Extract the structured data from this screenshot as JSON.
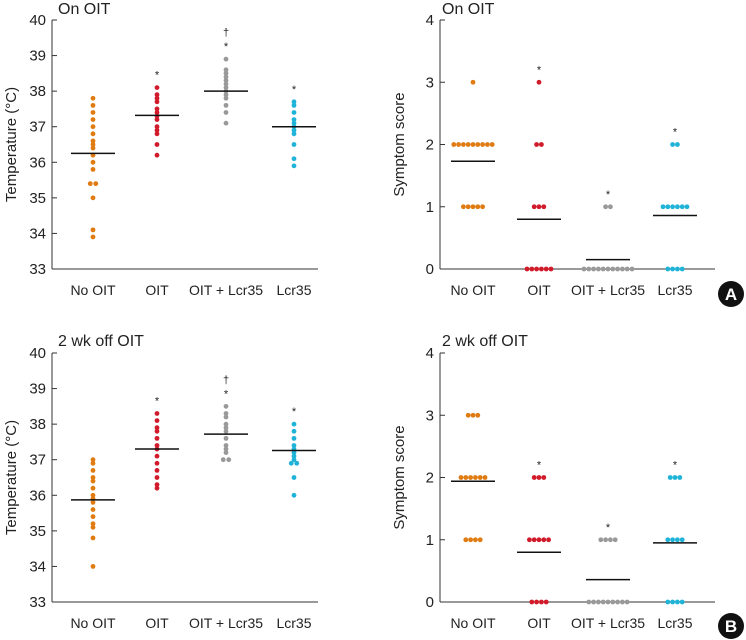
{
  "colors": {
    "No OIT": "#e07b12",
    "OIT": "#d11a2a",
    "OIT + Lcr35": "#999999",
    "Lcr35": "#1fb3d8"
  },
  "labels": {
    "A": "A",
    "B": "B"
  },
  "chart_data": [
    {
      "type": "scatter",
      "title": "On OIT",
      "ylabel": "Temperature (°C)",
      "ylim": [
        33,
        40
      ],
      "yticks": [
        33,
        34,
        35,
        36,
        37,
        38,
        39,
        40
      ],
      "categories": [
        "No OIT",
        "OIT",
        "OIT + Lcr35",
        "Lcr35"
      ],
      "series": [
        {
          "name": "No OIT",
          "values": [
            37.8,
            37.6,
            37.4,
            37.2,
            37.0,
            36.8,
            36.6,
            36.5,
            36.4,
            36.2,
            36.0,
            35.8,
            35.4,
            35.4,
            35.0,
            34.1,
            33.9
          ],
          "mean": 36.25,
          "annotation": ""
        },
        {
          "name": "OIT",
          "values": [
            38.1,
            37.9,
            37.8,
            37.7,
            37.5,
            37.4,
            37.3,
            37.2,
            37.0,
            36.9,
            36.8,
            36.5,
            36.2
          ],
          "mean": 37.32,
          "annotation": "*"
        },
        {
          "name": "OIT + Lcr35",
          "values": [
            38.9,
            38.6,
            38.5,
            38.4,
            38.3,
            38.2,
            38.1,
            38.0,
            37.9,
            37.8,
            37.6,
            37.4,
            37.1
          ],
          "mean": 38.0,
          "annotation": "†*"
        },
        {
          "name": "Lcr35",
          "values": [
            37.7,
            37.6,
            37.4,
            37.2,
            37.1,
            37.0,
            36.9,
            36.8,
            36.5,
            36.1,
            35.9
          ],
          "mean": 37.0,
          "annotation": "*"
        }
      ]
    },
    {
      "type": "scatter",
      "title": "On OIT",
      "ylabel": "Symptom score",
      "ylim": [
        0,
        4
      ],
      "yticks": [
        0,
        1,
        2,
        3,
        4
      ],
      "categories": [
        "No OIT",
        "OIT",
        "OIT + Lcr35",
        "Lcr35"
      ],
      "series": [
        {
          "name": "No OIT",
          "values": [
            3,
            2,
            2,
            2,
            2,
            2,
            2,
            2,
            2,
            2,
            1,
            1,
            1,
            1,
            1
          ],
          "mean": 1.73,
          "annotation": ""
        },
        {
          "name": "OIT",
          "values": [
            3,
            2,
            2,
            1,
            1,
            1,
            0,
            0,
            0,
            0,
            0,
            0
          ],
          "mean": 0.8,
          "annotation": "*"
        },
        {
          "name": "OIT + Lcr35",
          "values": [
            1,
            1,
            0,
            0,
            0,
            0,
            0,
            0,
            0,
            0,
            0,
            0,
            0
          ],
          "mean": 0.15,
          "annotation": "*"
        },
        {
          "name": "Lcr35",
          "values": [
            2,
            2,
            1,
            1,
            1,
            1,
            1,
            1,
            0,
            0,
            0,
            0
          ],
          "mean": 0.86,
          "annotation": "*"
        }
      ]
    },
    {
      "type": "scatter",
      "title": "2 wk off OIT",
      "ylabel": "Temperature (°C)",
      "ylim": [
        33,
        40
      ],
      "yticks": [
        33,
        34,
        35,
        36,
        37,
        38,
        39,
        40
      ],
      "categories": [
        "No OIT",
        "OIT",
        "OIT + Lcr35",
        "Lcr35"
      ],
      "series": [
        {
          "name": "No OIT",
          "values": [
            37.0,
            36.9,
            36.7,
            36.5,
            36.4,
            36.2,
            36.0,
            35.9,
            35.8,
            35.6,
            35.4,
            35.2,
            35.1,
            34.8,
            34.0
          ],
          "mean": 35.87,
          "annotation": ""
        },
        {
          "name": "OIT",
          "values": [
            38.3,
            38.1,
            37.9,
            37.8,
            37.6,
            37.4,
            37.3,
            37.1,
            36.9,
            36.7,
            36.5,
            36.3,
            36.2
          ],
          "mean": 37.3,
          "annotation": "*"
        },
        {
          "name": "OIT + Lcr35",
          "values": [
            38.5,
            38.3,
            38.2,
            38.0,
            37.9,
            37.8,
            37.6,
            37.4,
            37.3,
            37.2,
            37.0,
            37.0
          ],
          "mean": 37.72,
          "annotation": "†*"
        },
        {
          "name": "Lcr35",
          "values": [
            38.0,
            37.8,
            37.6,
            37.4,
            37.3,
            37.2,
            37.1,
            37.0,
            36.9,
            36.9,
            36.5,
            36.0
          ],
          "mean": 37.26,
          "annotation": "*"
        }
      ]
    },
    {
      "type": "scatter",
      "title": "2 wk off OIT",
      "ylabel": "Symptom score",
      "ylim": [
        0,
        4
      ],
      "yticks": [
        0,
        1,
        2,
        3,
        4
      ],
      "categories": [
        "No OIT",
        "OIT",
        "OIT + Lcr35",
        "Lcr35"
      ],
      "series": [
        {
          "name": "No OIT",
          "values": [
            3,
            3,
            3,
            2,
            2,
            2,
            2,
            2,
            2,
            1,
            1,
            1,
            1
          ],
          "mean": 1.94,
          "annotation": ""
        },
        {
          "name": "OIT",
          "values": [
            2,
            2,
            2,
            1,
            1,
            1,
            1,
            1,
            0,
            0,
            0,
            0
          ],
          "mean": 0.8,
          "annotation": "*"
        },
        {
          "name": "OIT + Lcr35",
          "values": [
            1,
            1,
            1,
            1,
            0,
            0,
            0,
            0,
            0,
            0,
            0,
            0,
            0
          ],
          "mean": 0.36,
          "annotation": "*"
        },
        {
          "name": "Lcr35",
          "values": [
            2,
            2,
            2,
            1,
            1,
            1,
            1,
            0,
            0,
            0,
            0
          ],
          "mean": 0.95,
          "annotation": "*"
        }
      ]
    }
  ]
}
